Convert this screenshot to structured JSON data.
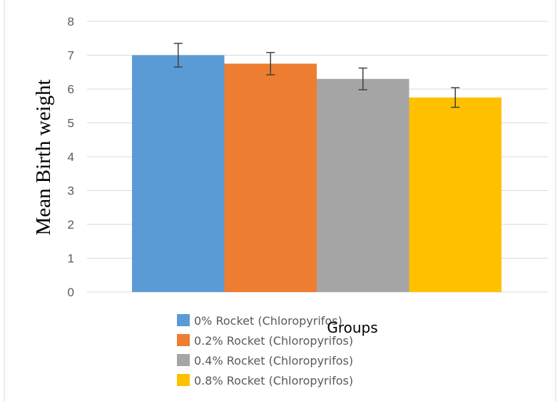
{
  "chart_data": {
    "type": "bar",
    "title": "",
    "xlabel": "Groups",
    "ylabel": "Mean Birth weight",
    "ylim": [
      0,
      8
    ],
    "yticks": [
      0,
      1,
      2,
      3,
      4,
      5,
      6,
      7,
      8
    ],
    "grid": true,
    "legend_position": "bottom",
    "series": [
      {
        "name": "0% Rocket (Chloropyrifos)",
        "value": 7.0,
        "error": 0.35,
        "color": "#5b9bd5"
      },
      {
        "name": "0.2% Rocket (Chloropyrifos)",
        "value": 6.75,
        "error": 0.33,
        "color": "#ed7d31"
      },
      {
        "name": "0.4% Rocket (Chloropyrifos)",
        "value": 6.3,
        "error": 0.32,
        "color": "#a5a5a5"
      },
      {
        "name": "0.8% Rocket (Chloropyrifos)",
        "value": 5.75,
        "error": 0.29,
        "color": "#ffc000"
      }
    ]
  }
}
